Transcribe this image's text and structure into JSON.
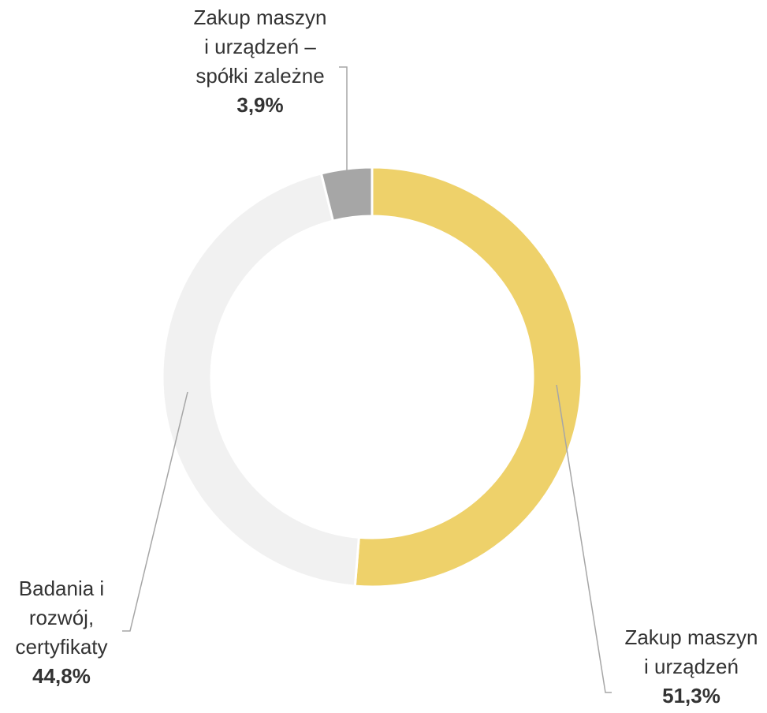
{
  "chart_data": {
    "type": "donut",
    "categories": [
      "Zakup maszyn i urządzeń",
      "Badania i rozwój, certyfikaty",
      "Zakup maszyn i urządzeń – spółki zależne"
    ],
    "values": [
      51.3,
      44.8,
      3.9
    ],
    "value_labels": [
      "51,3%",
      "44,8%",
      "3,9%"
    ],
    "colors": [
      "#eed16a",
      "#f1f1f1",
      "#a6a6a6"
    ]
  }
}
